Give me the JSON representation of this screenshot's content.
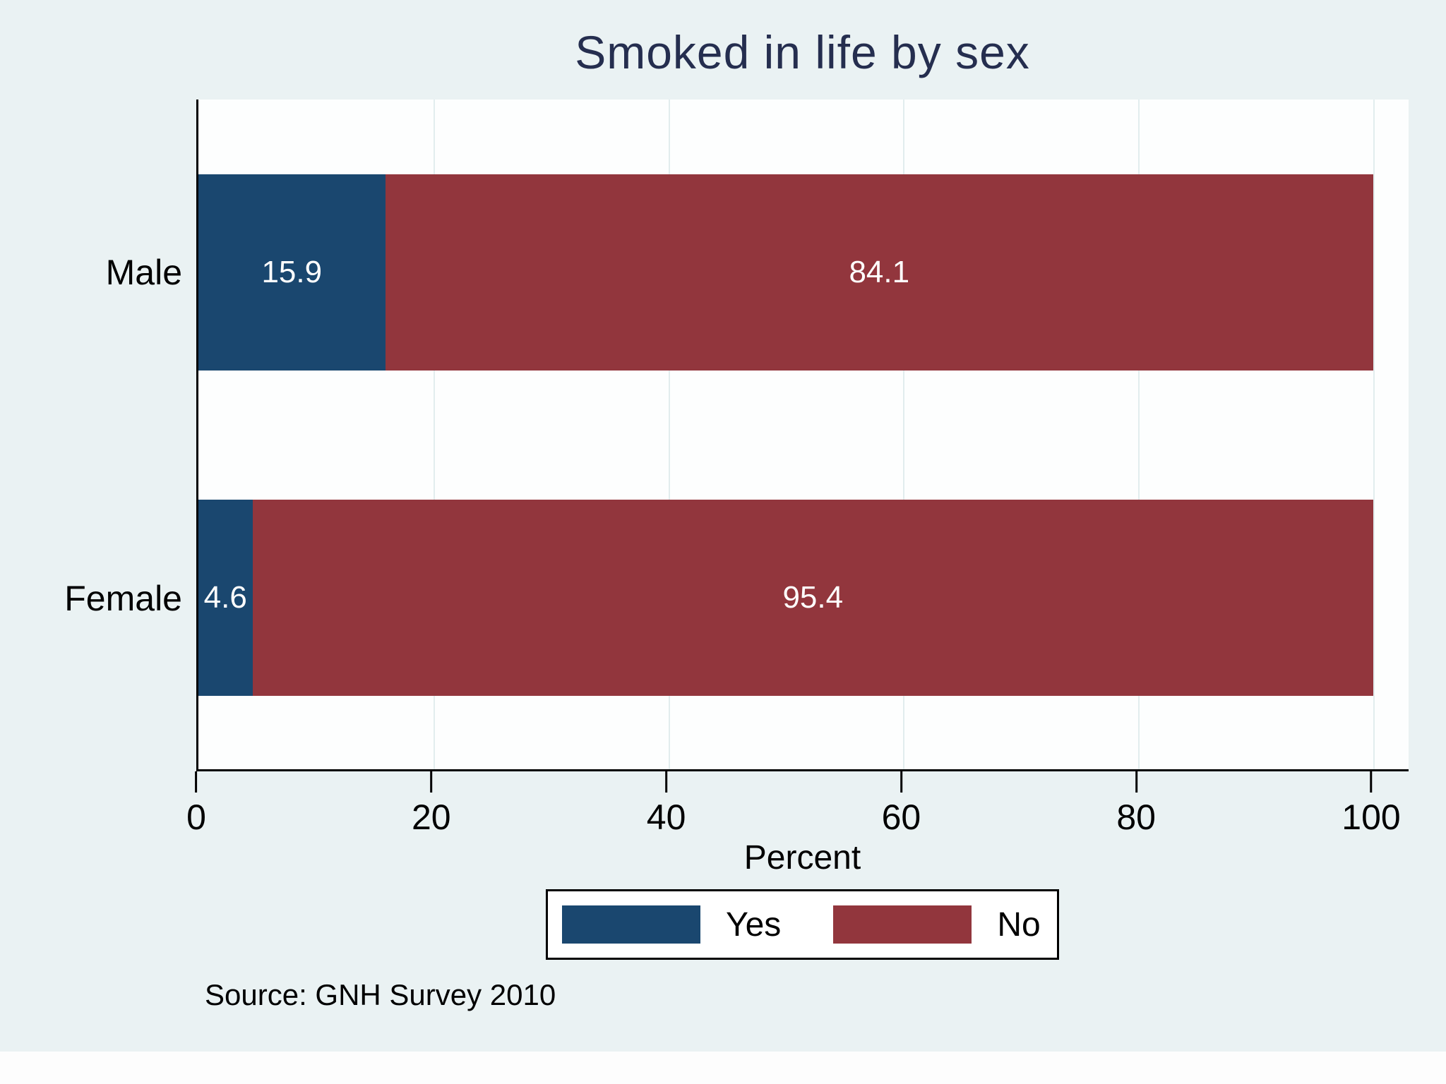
{
  "chart_data": {
    "type": "bar",
    "orientation": "horizontal",
    "stacked": true,
    "categories": [
      "Male",
      "Female"
    ],
    "series": [
      {
        "name": "Yes",
        "values": [
          15.9,
          4.6
        ],
        "color": "#1a476f"
      },
      {
        "name": "No",
        "values": [
          84.1,
          95.4
        ],
        "color": "#92363d"
      }
    ],
    "title": "Smoked in life by sex",
    "xlabel": "Percent",
    "xlim": [
      0,
      100
    ],
    "xticks": [
      "0",
      "20",
      "40",
      "60",
      "80",
      "100"
    ],
    "grid": "vertical-faint",
    "legend_position": "bottom",
    "annotation": "Source: GNH Survey 2010"
  },
  "style": {
    "background": "#eaf2f3",
    "plot_background": "#fdfefe",
    "title_color": "#252e4f",
    "yes_color": "#1a476f",
    "no_color": "#92363d"
  }
}
